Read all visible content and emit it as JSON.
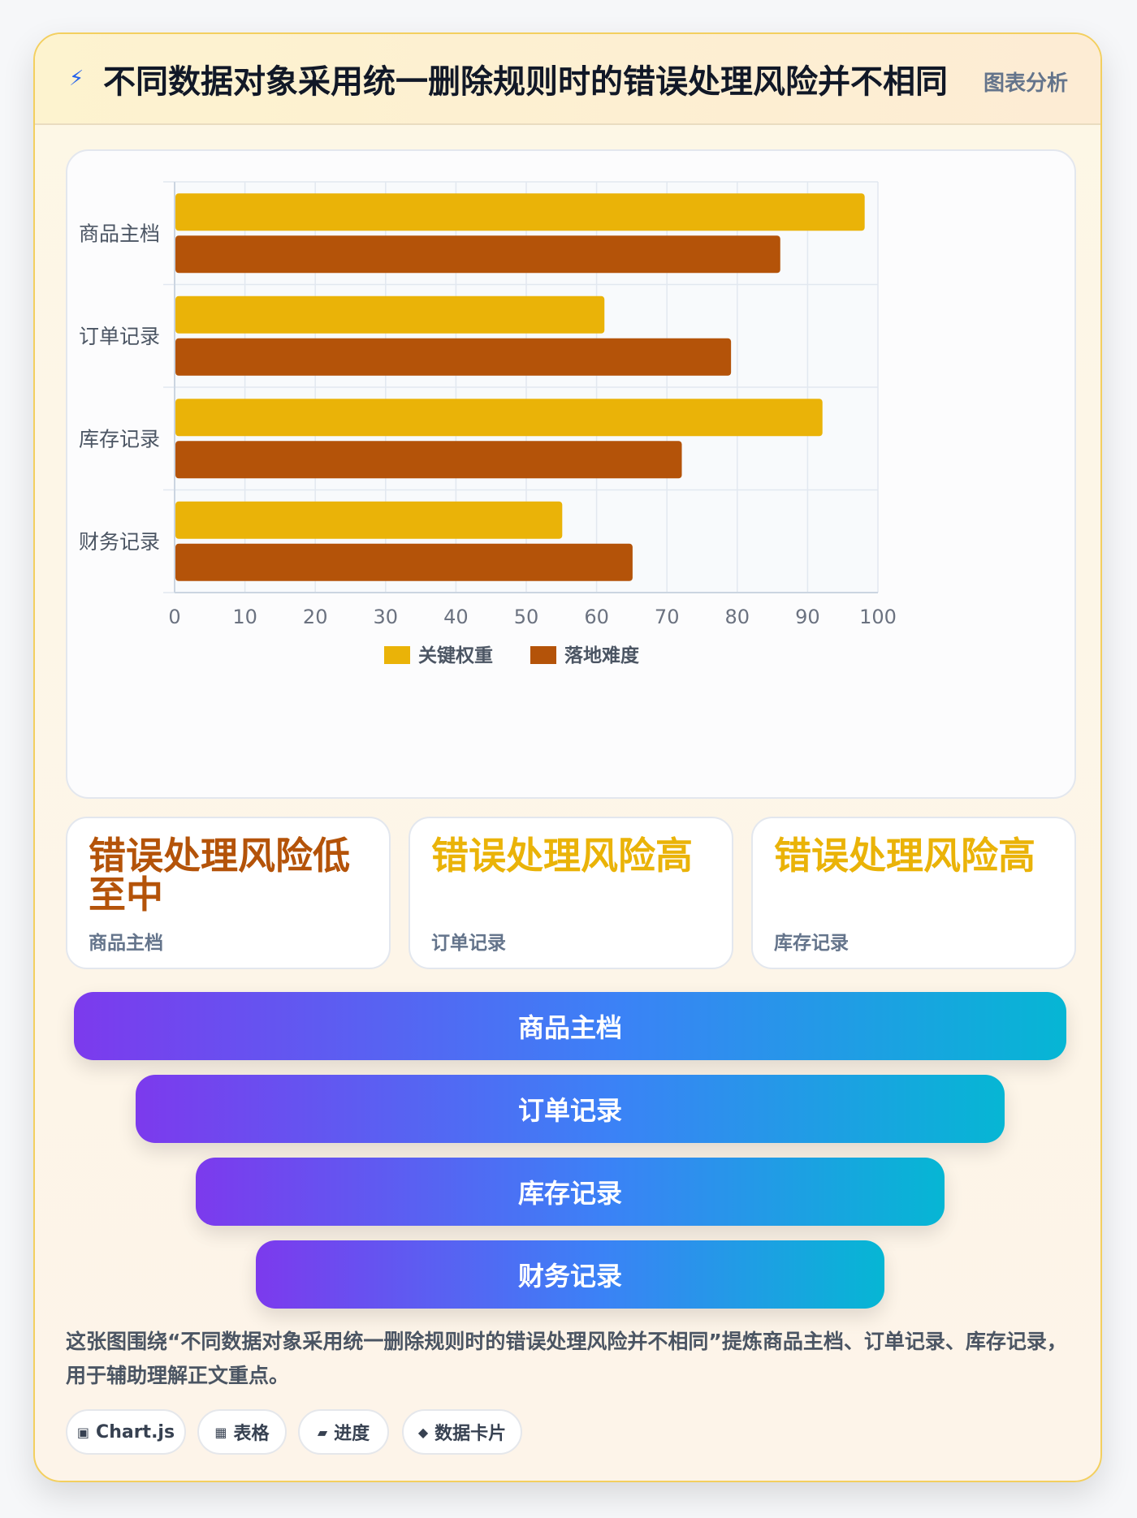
{
  "header": {
    "title": "不同数据对象采用统一删除规则时的错误处理风险并不相同",
    "tag": "图表分析"
  },
  "chart_data": {
    "type": "bar",
    "orientation": "horizontal",
    "categories": [
      "商品主档",
      "订单记录",
      "库存记录",
      "财务记录"
    ],
    "series": [
      {
        "name": "关键权重",
        "color": "#eab308",
        "values": [
          98,
          61,
          92,
          55
        ]
      },
      {
        "name": "落地难度",
        "color": "#b45309",
        "values": [
          86,
          79,
          72,
          65
        ]
      }
    ],
    "xlim": [
      0,
      100
    ],
    "xticks": [
      "0",
      "10",
      "20",
      "30",
      "40",
      "50",
      "60",
      "70",
      "80",
      "90",
      "100"
    ],
    "grid": true,
    "legend_position": "bottom"
  },
  "stats": [
    {
      "value": "错误处理风险低至中",
      "label": "商品主档",
      "color": "#b45309"
    },
    {
      "value": "错误处理风险高",
      "label": "订单记录",
      "color": "#eab308"
    },
    {
      "value": "错误处理风险高",
      "label": "库存记录",
      "color": "#eab308"
    }
  ],
  "funnel": [
    "商品主档",
    "订单记录",
    "库存记录",
    "财务记录"
  ],
  "description": "这张图围绕“不同数据对象采用统一删除规则时的错误处理风险并不相同”提炼商品主档、订单记录、库存记录，用于辅助理解正文重点。",
  "chips": [
    {
      "icon": "▣",
      "label": "Chart.js"
    },
    {
      "icon": "▦",
      "label": "表格"
    },
    {
      "icon": "▰",
      "label": "进度"
    },
    {
      "icon": "◆",
      "label": "数据卡片"
    }
  ]
}
